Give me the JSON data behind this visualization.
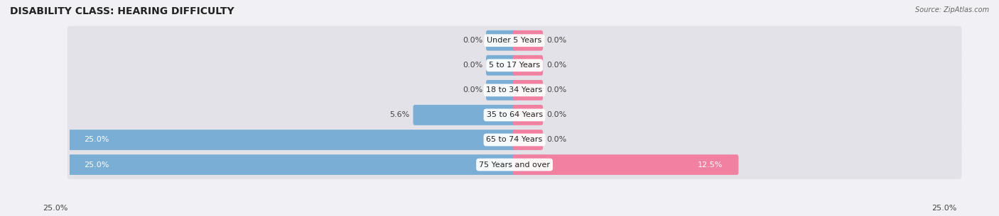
{
  "title": "DISABILITY CLASS: HEARING DIFFICULTY",
  "source": "Source: ZipAtlas.com",
  "categories": [
    "Under 5 Years",
    "5 to 17 Years",
    "18 to 34 Years",
    "35 to 64 Years",
    "65 to 74 Years",
    "75 Years and over"
  ],
  "male_values": [
    0.0,
    0.0,
    0.0,
    5.6,
    25.0,
    25.0
  ],
  "female_values": [
    0.0,
    0.0,
    0.0,
    0.0,
    0.0,
    12.5
  ],
  "male_color": "#7aaed4",
  "female_color": "#f280a1",
  "row_bg_color": "#e2e2e8",
  "fig_bg_color": "#f0f0f5",
  "max_val": 25.0,
  "min_bar_width": 1.5,
  "title_fontsize": 10,
  "label_fontsize": 8,
  "tick_fontsize": 8,
  "figsize": [
    14.06,
    3.05
  ],
  "dpi": 100
}
